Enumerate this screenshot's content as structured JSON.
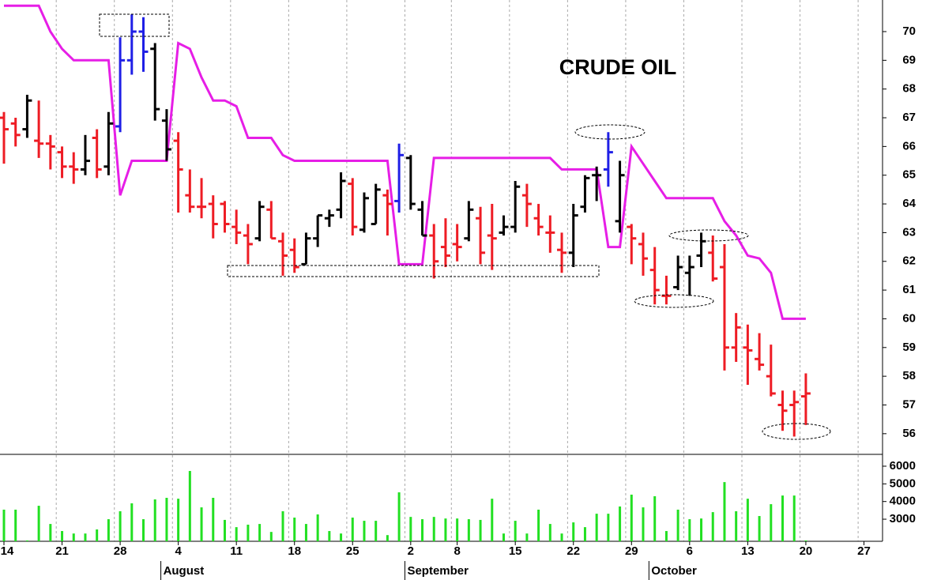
{
  "chart_data": {
    "type": "ohlc",
    "title": "CRUDE OIL",
    "xlim": [
      -0.34,
      75.6
    ],
    "xticks": [
      {
        "value": 0,
        "label": "14"
      },
      {
        "value": 5,
        "label": "21"
      },
      {
        "value": 10,
        "label": "28"
      },
      {
        "value": 15,
        "label": "4"
      },
      {
        "value": 20,
        "label": "11"
      },
      {
        "value": 25,
        "label": "18"
      },
      {
        "value": 30,
        "label": "25"
      },
      {
        "value": 35,
        "label": "2"
      },
      {
        "value": 39,
        "label": "8"
      },
      {
        "value": 44,
        "label": "15"
      },
      {
        "value": 49,
        "label": "22"
      },
      {
        "value": 54,
        "label": "29"
      },
      {
        "value": 59,
        "label": "6"
      },
      {
        "value": 64,
        "label": "13"
      },
      {
        "value": 69,
        "label": "20"
      },
      {
        "value": 74,
        "label": "27"
      }
    ],
    "months": [
      {
        "value": 14,
        "label": "August"
      },
      {
        "value": 35,
        "label": "September"
      },
      {
        "value": 56,
        "label": "October"
      }
    ],
    "ylim": [
      55.28,
      71.1
    ],
    "yticks": [
      56,
      57,
      58,
      59,
      60,
      61,
      62,
      63,
      64,
      65,
      66,
      67,
      68,
      69,
      70
    ],
    "open": [
      67.0,
      66.8,
      66.6,
      66.2,
      66.1,
      65.8,
      65.3,
      65.2,
      66.3,
      65.3,
      66.7,
      69.0,
      70.0,
      69.4,
      66.9,
      66.2,
      64.3,
      63.9,
      64.0,
      64.0,
      63.2,
      62.9,
      62.8,
      63.8,
      62.7,
      62.4,
      61.9,
      62.8,
      63.5,
      63.8,
      64.7,
      63.1,
      63.3,
      64.3,
      64.1,
      65.6,
      63.8,
      62.9,
      62.5,
      62.6,
      62.8,
      63.5,
      62.9,
      63.0,
      63.2,
      64.3,
      63.5,
      63.0,
      62.4,
      62.3,
      63.9,
      65.0,
      65.2,
      63.4,
      63.2,
      62.6,
      61.7,
      60.8,
      61.1,
      61.6,
      62.2,
      62.3,
      61.8,
      59.0,
      59.0,
      58.6,
      58.0,
      57.0,
      57.0,
      57.3
    ],
    "high": [
      67.2,
      67.0,
      67.8,
      67.6,
      66.4,
      66.0,
      65.8,
      66.4,
      66.6,
      67.2,
      69.8,
      70.6,
      70.5,
      69.6,
      67.3,
      66.5,
      65.2,
      64.9,
      64.3,
      64.1,
      63.8,
      63.3,
      64.1,
      64.1,
      63.0,
      62.8,
      63.0,
      63.6,
      63.8,
      65.1,
      64.9,
      64.4,
      64.7,
      64.5,
      66.1,
      65.7,
      64.1,
      63.3,
      63.5,
      63.3,
      64.1,
      63.9,
      64.0,
      63.6,
      64.8,
      64.7,
      64.0,
      63.6,
      63.0,
      64.0,
      65.0,
      65.3,
      66.5,
      65.5,
      63.3,
      63.0,
      62.5,
      61.5,
      62.2,
      62.2,
      63.0,
      62.9,
      62.6,
      60.2,
      59.8,
      59.5,
      59.1,
      57.5,
      57.5,
      58.1
    ],
    "low": [
      65.4,
      66.0,
      66.3,
      65.6,
      65.2,
      64.9,
      64.7,
      65.0,
      64.9,
      65.0,
      66.5,
      68.5,
      68.6,
      66.9,
      65.5,
      63.7,
      63.7,
      63.5,
      62.8,
      63.0,
      62.6,
      61.9,
      62.7,
      62.8,
      61.5,
      61.6,
      61.9,
      62.5,
      63.2,
      63.5,
      62.9,
      63.0,
      63.3,
      62.9,
      63.7,
      63.8,
      62.9,
      61.4,
      61.8,
      62.0,
      62.7,
      61.9,
      61.7,
      62.9,
      63.0,
      63.2,
      62.9,
      62.3,
      61.6,
      61.8,
      63.7,
      64.1,
      64.6,
      63.0,
      61.9,
      61.5,
      60.5,
      60.5,
      61.0,
      60.8,
      61.8,
      61.3,
      58.2,
      58.5,
      57.7,
      58.2,
      57.3,
      56.1,
      55.9,
      56.3
    ],
    "close": [
      66.6,
      66.4,
      67.6,
      66.1,
      66.0,
      65.3,
      65.2,
      65.5,
      65.2,
      66.8,
      69.0,
      70.0,
      69.3,
      67.3,
      65.9,
      65.2,
      63.9,
      63.9,
      63.3,
      63.3,
      63.0,
      62.6,
      63.9,
      62.8,
      62.2,
      61.8,
      62.8,
      63.6,
      63.6,
      64.8,
      63.2,
      64.2,
      64.5,
      64.0,
      65.7,
      64.0,
      62.9,
      62.0,
      62.2,
      62.5,
      63.8,
      62.3,
      62.8,
      63.2,
      64.6,
      64.0,
      63.2,
      63.0,
      62.3,
      63.6,
      64.9,
      65.0,
      65.8,
      65.0,
      62.8,
      62.1,
      61.0,
      60.8,
      61.8,
      61.8,
      62.7,
      61.4,
      59.0,
      59.7,
      58.9,
      58.4,
      57.4,
      56.8,
      57.1,
      57.4
    ],
    "bar_colors": [
      "#ee1c24",
      "#ee1c24",
      "#000000",
      "#ee1c24",
      "#ee1c24",
      "#ee1c24",
      "#ee1c24",
      "#000000",
      "#ee1c24",
      "#000000",
      "#1f1fe6",
      "#1f1fe6",
      "#1f1fe6",
      "#000000",
      "#000000",
      "#ee1c24",
      "#ee1c24",
      "#ee1c24",
      "#ee1c24",
      "#ee1c24",
      "#ee1c24",
      "#ee1c24",
      "#000000",
      "#ee1c24",
      "#ee1c24",
      "#ee1c24",
      "#000000",
      "#000000",
      "#000000",
      "#000000",
      "#ee1c24",
      "#000000",
      "#000000",
      "#ee1c24",
      "#1f1fe6",
      "#000000",
      "#000000",
      "#ee1c24",
      "#ee1c24",
      "#ee1c24",
      "#000000",
      "#ee1c24",
      "#ee1c24",
      "#000000",
      "#000000",
      "#ee1c24",
      "#ee1c24",
      "#ee1c24",
      "#ee1c24",
      "#000000",
      "#000000",
      "#000000",
      "#1f1fe6",
      "#000000",
      "#ee1c24",
      "#ee1c24",
      "#ee1c24",
      "#ee1c24",
      "#000000",
      "#000000",
      "#000000",
      "#ee1c24",
      "#ee1c24",
      "#ee1c24",
      "#ee1c24",
      "#ee1c24",
      "#ee1c24",
      "#ee1c24",
      "#ee1c24",
      "#ee1c24"
    ],
    "stop_line": {
      "color": "#e61ee6",
      "values": [
        70.9,
        70.9,
        70.9,
        70.9,
        70.0,
        69.4,
        69.0,
        69.0,
        69.0,
        69.0,
        64.3,
        65.5,
        65.5,
        65.5,
        65.5,
        69.6,
        69.4,
        68.4,
        67.6,
        67.6,
        67.4,
        66.3,
        66.3,
        66.3,
        65.7,
        65.5,
        65.5,
        65.5,
        65.5,
        65.5,
        65.5,
        65.5,
        65.5,
        65.5,
        61.9,
        61.9,
        61.9,
        65.6,
        65.6,
        65.6,
        65.6,
        65.6,
        65.6,
        65.6,
        65.6,
        65.6,
        65.6,
        65.6,
        65.2,
        65.2,
        65.2,
        65.2,
        62.5,
        62.5,
        66.0,
        65.4,
        64.8,
        64.2,
        64.2,
        64.2,
        64.2,
        64.2,
        63.4,
        62.9,
        62.2,
        62.1,
        61.6,
        60.0,
        60.0,
        60.0
      ]
    },
    "volume": {
      "color": "#22e022",
      "ylim": [
        1750,
        6670
      ],
      "yticks": [
        3000,
        4000,
        5000,
        6000
      ],
      "values": [
        3540,
        3540,
        1800,
        3760,
        2730,
        2330,
        2190,
        2190,
        2420,
        3000,
        3450,
        3900,
        3000,
        4120,
        4210,
        4160,
        5730,
        3670,
        4210,
        2960,
        2550,
        2690,
        2730,
        2280,
        3450,
        3090,
        2730,
        3270,
        2330,
        2190,
        3090,
        2910,
        2910,
        2100,
        4520,
        3130,
        3000,
        3130,
        3040,
        3040,
        3000,
        2960,
        4160,
        2190,
        2910,
        2190,
        3540,
        2730,
        2190,
        2820,
        2550,
        3310,
        3310,
        3720,
        4390,
        3670,
        4300,
        2330,
        3540,
        3000,
        3040,
        3400,
        5100,
        3450,
        4160,
        3180,
        3850,
        4340,
        4340,
        1800
      ]
    }
  }
}
